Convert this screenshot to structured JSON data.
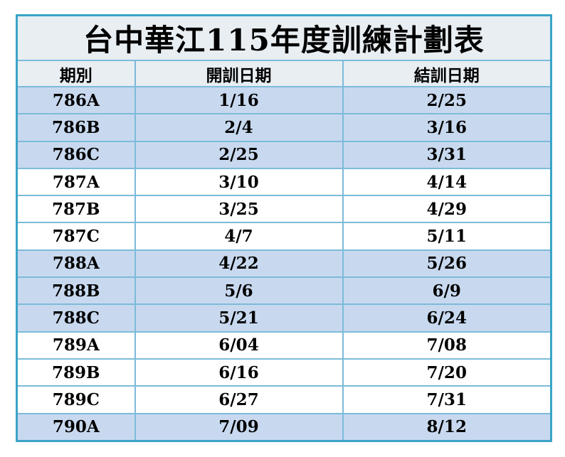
{
  "title": "台中華江115年度訓練計劃表",
  "table": {
    "headers": {
      "period": "期別",
      "start": "開訓日期",
      "end": "結訓日期"
    },
    "rows": [
      {
        "period": "786A",
        "start": "1/16",
        "end": "2/25"
      },
      {
        "period": "786B",
        "start": "2/4",
        "end": "3/16"
      },
      {
        "period": "786C",
        "start": "2/25",
        "end": "3/31"
      },
      {
        "period": "787A",
        "start": "3/10",
        "end": "4/14"
      },
      {
        "period": "787B",
        "start": "3/25",
        "end": "4/29"
      },
      {
        "period": "787C",
        "start": "4/7",
        "end": "5/11"
      },
      {
        "period": "788A",
        "start": "4/22",
        "end": "5/26"
      },
      {
        "period": "788B",
        "start": "5/6",
        "end": "6/9"
      },
      {
        "period": "788C",
        "start": "5/21",
        "end": "6/24"
      },
      {
        "period": "789A",
        "start": "6/04",
        "end": "7/08"
      },
      {
        "period": "789B",
        "start": "6/16",
        "end": "7/20"
      },
      {
        "period": "789C",
        "start": "6/27",
        "end": "7/31"
      },
      {
        "period": "790A",
        "start": "7/09",
        "end": "8/12"
      }
    ]
  },
  "colors": {
    "shaded_row": "#c8d9ef",
    "plain_row": "#ffffff",
    "header_bg": "#e8eef2",
    "outer_border": "#3aa4c8",
    "inner_border": "#7cbbd9",
    "text": "#000000"
  }
}
